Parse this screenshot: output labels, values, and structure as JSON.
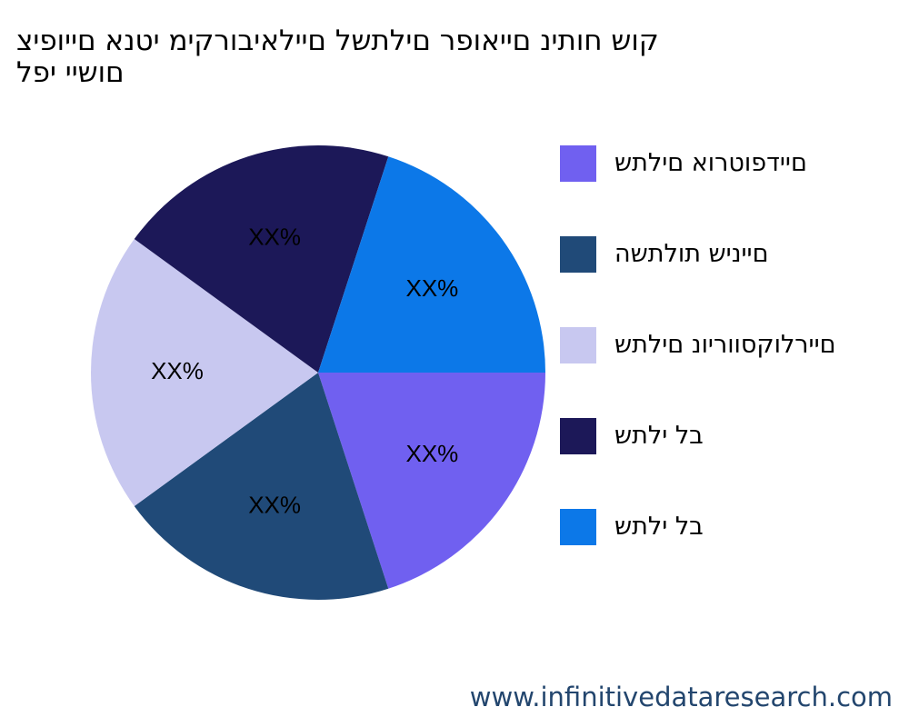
{
  "title": "קוש חותינ םייאופר םילתשל םיילאיבורקימ יטנא םייופיצ\nםושיי יפל",
  "footer_url": "www.infinitivedataresearch.com",
  "chart_data": {
    "type": "pie",
    "title": "קוש חותינ םייאופר םילתשל םיילאיבורקימ יטנא םייופיצ םושיי יפל",
    "slices": [
      {
        "name": "םיידפוטרוא םילתש",
        "value": 20,
        "label": "XX%",
        "color": "#7060f0"
      },
      {
        "name": "םייניש תולתשה",
        "value": 20,
        "label": "XX%",
        "color": "#204a78"
      },
      {
        "name": "םיירלוקסווריונ םילתש",
        "value": 20,
        "label": "XX%",
        "color": "#c8c8f0"
      },
      {
        "name": "בל ילתש",
        "value": 20,
        "label": "XX%",
        "color": "#1c1858"
      },
      {
        "name": "בל ילתש",
        "value": 20,
        "label": "XX%",
        "color": "#0c78e8"
      }
    ],
    "start_angle_deg": 0,
    "direction": "clockwise",
    "legend_position": "right"
  }
}
